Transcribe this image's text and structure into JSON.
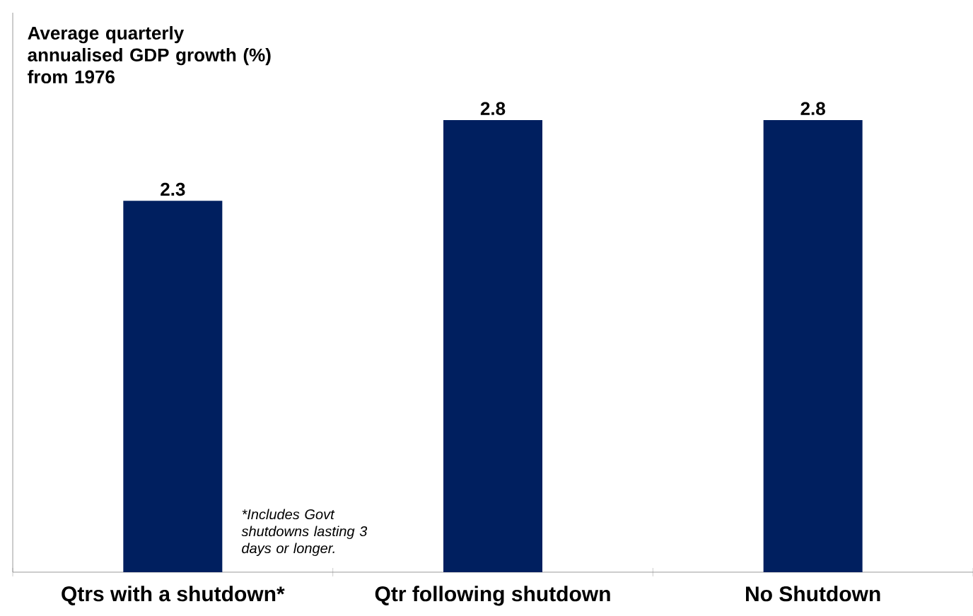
{
  "chart_data": {
    "type": "bar",
    "title": "Average quarterly annualised GDP growth (%) from 1976",
    "categories": [
      "Qtrs with a shutdown*",
      "Qtr following shutdown",
      "No Shutdown"
    ],
    "values": [
      2.3,
      2.8,
      2.8
    ],
    "color": "#001f5f",
    "data_labels": true,
    "tick_labels": "x",
    "annotations": [
      "*Includes Govt shutdowns lasting 3 days or longer."
    ]
  }
}
